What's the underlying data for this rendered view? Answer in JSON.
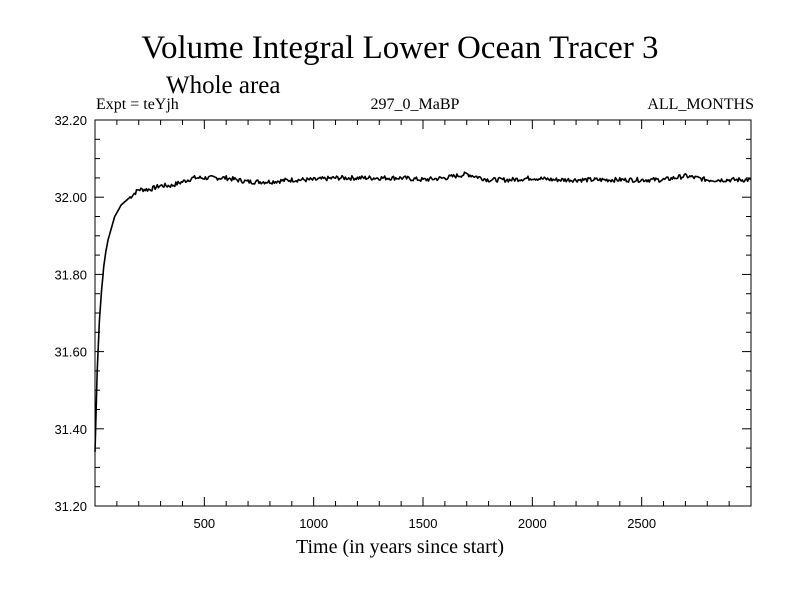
{
  "chart_data": {
    "type": "line",
    "title": "Volume Integral Lower Ocean Tracer 3",
    "subtitle": "Whole area",
    "header_left": "Expt = teYjh",
    "header_center": "297_0_MaBP",
    "header_right": "ALL_MONTHS",
    "xlabel": "Time (in years since start)",
    "ylabel": "",
    "xlim": [
      0,
      3000
    ],
    "ylim": [
      31.2,
      32.2
    ],
    "x_ticks": [
      500,
      1000,
      1500,
      2000,
      2500
    ],
    "x_tick_labels": [
      "500",
      "1000",
      "1500",
      "2000",
      "2500"
    ],
    "y_ticks": [
      31.2,
      31.4,
      31.6,
      31.8,
      32.0,
      32.2
    ],
    "y_tick_labels": [
      "31.20",
      "31.40",
      "31.60",
      "31.80",
      "32.00",
      "32.20"
    ],
    "series": [
      {
        "name": "Lower Ocean Tracer 3",
        "x": [
          0,
          10,
          20,
          30,
          40,
          50,
          60,
          70,
          80,
          90,
          100,
          120,
          140,
          160,
          180,
          200,
          250,
          300,
          350,
          400,
          450,
          500,
          600,
          700,
          800,
          900,
          1000,
          1100,
          1200,
          1300,
          1400,
          1500,
          1600,
          1700,
          1800,
          1900,
          2000,
          2100,
          2200,
          2300,
          2400,
          2500,
          2600,
          2700,
          2800,
          2900,
          3000
        ],
        "values": [
          31.34,
          31.55,
          31.68,
          31.76,
          31.82,
          31.86,
          31.89,
          31.91,
          31.93,
          31.95,
          31.96,
          31.98,
          31.99,
          32.0,
          32.01,
          32.02,
          32.02,
          32.03,
          32.03,
          32.04,
          32.05,
          32.05,
          32.05,
          32.04,
          32.04,
          32.045,
          32.045,
          32.05,
          32.05,
          32.05,
          32.05,
          32.045,
          32.05,
          32.06,
          32.045,
          32.045,
          32.05,
          32.045,
          32.045,
          32.045,
          32.045,
          32.045,
          32.045,
          32.055,
          32.045,
          32.045,
          32.045
        ]
      }
    ],
    "colors": {
      "line": "#000000",
      "axes": "#000000",
      "background": "#ffffff"
    }
  }
}
